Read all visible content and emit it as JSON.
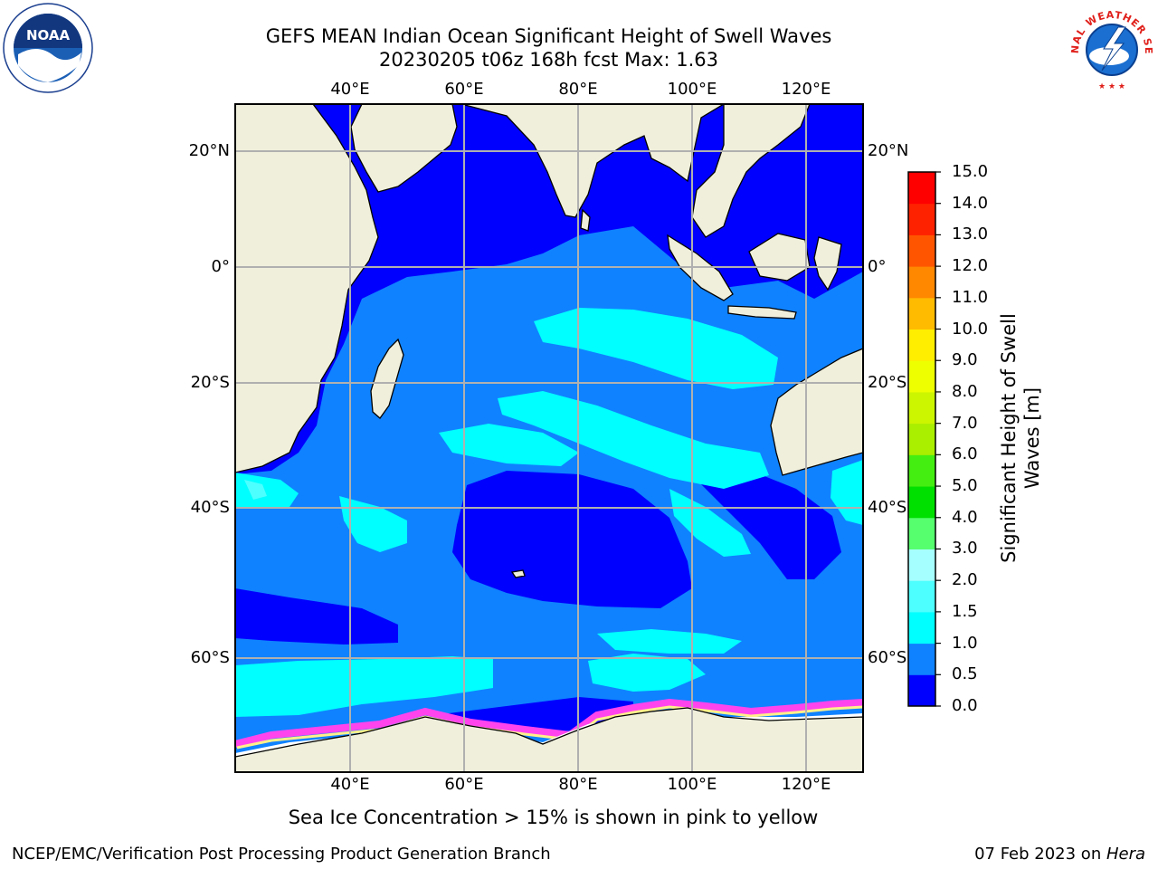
{
  "title": {
    "line1": "GEFS MEAN Indian Ocean Significant Height of Swell Waves",
    "line2": "20230205 t06z 168h fcst   Max: 1.63"
  },
  "map": {
    "lon_range": [
      20,
      130
    ],
    "lat_range": [
      -70,
      28
    ],
    "lon_ticks": [
      "40°E",
      "60°E",
      "80°E",
      "100°E",
      "120°E"
    ],
    "lat_ticks": [
      "20°N",
      "0°",
      "20°S",
      "40°S",
      "60°S"
    ],
    "land_color": "#efefdc",
    "grid_color": "#b0b0b0"
  },
  "colorbar": {
    "label": "Significant Height of Swell Waves [m]",
    "ticks": [
      "0.0",
      "0.5",
      "1.0",
      "1.5",
      "2.0",
      "3.0",
      "4.0",
      "5.0",
      "6.0",
      "7.0",
      "8.0",
      "9.0",
      "10.0",
      "11.0",
      "12.0",
      "13.0",
      "14.0",
      "15.0"
    ],
    "colors": [
      "#0000ff",
      "#0f82ff",
      "#00ffff",
      "#4dffff",
      "#a6ffff",
      "#55ff6e",
      "#00e000",
      "#44ee11",
      "#aaee00",
      "#ccf500",
      "#eeff00",
      "#ffee00",
      "#ffbb00",
      "#ff8800",
      "#ff5500",
      "#ff2200",
      "#ff0000"
    ]
  },
  "caption": "Sea Ice Concentration > 15% is shown in pink to yellow",
  "footer": {
    "left": "NCEP/EMC/Verification Post Processing Product Generation Branch",
    "date": "07 Feb 2023 on ",
    "machine": "Hera"
  },
  "logos": {
    "noaa_text": "NOAA",
    "nws_text": "NATIONAL WEATHER SERVICE"
  }
}
